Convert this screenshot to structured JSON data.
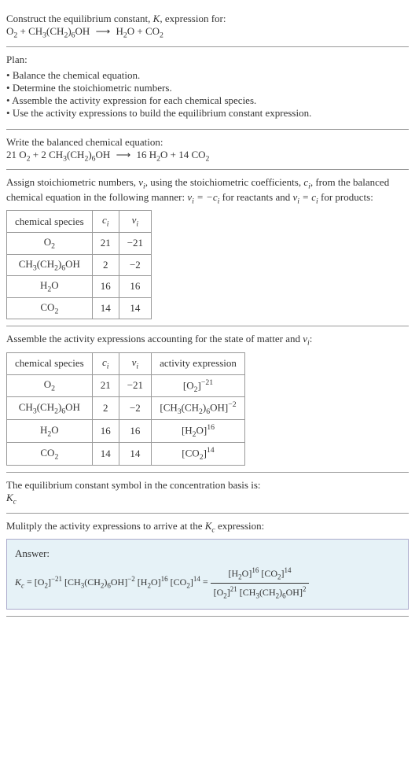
{
  "intro": {
    "title_prefix": "Construct the equilibrium constant, ",
    "K": "K",
    "title_suffix": ", expression for:",
    "species_O2": "O",
    "sub2": "2",
    "plus": " + ",
    "species_hept": "CH",
    "sub3": "3",
    "parenL": "(CH",
    "parenR": ")",
    "sub6": "6",
    "OH": "OH",
    "arrow": "⟶",
    "species_H2O": "H",
    "O": "O",
    "species_CO2": "CO"
  },
  "plan": {
    "label": "Plan:",
    "items": [
      "Balance the chemical equation.",
      "Determine the stoichiometric numbers.",
      "Assemble the activity expression for each chemical species.",
      "Use the activity expressions to build the equilibrium constant expression."
    ]
  },
  "balanced": {
    "label": "Write the balanced chemical equation:",
    "c_O2": "21 ",
    "c_hept": "2 ",
    "c_H2O": " 16 ",
    "c_CO2": "14 "
  },
  "stoich": {
    "text1": "Assign stoichiometric numbers, ",
    "nu": "ν",
    "sub_i": "i",
    "text2": ", using the stoichiometric coefficients, ",
    "c": "c",
    "text3": ", from the balanced chemical equation in the following manner: ",
    "rel_react": " = −",
    "text_react": " for reactants and ",
    "rel_prod": " = ",
    "text_prod": " for products:",
    "headers": {
      "species": "chemical species",
      "ci": "c",
      "nui": "ν"
    },
    "rows": [
      {
        "ci": "21",
        "nui": "−21"
      },
      {
        "ci": "2",
        "nui": "−2"
      },
      {
        "ci": "16",
        "nui": "16"
      },
      {
        "ci": "14",
        "nui": "14"
      }
    ]
  },
  "activity": {
    "label": "Assemble the activity expressions accounting for the state of matter and ",
    "colon": ":",
    "headers": {
      "species": "chemical species",
      "ci": "c",
      "nui": "ν",
      "act": "activity expression"
    },
    "rows": [
      {
        "ci": "21",
        "nui": "−21",
        "exp": "−21"
      },
      {
        "ci": "2",
        "nui": "−2",
        "exp": "−2"
      },
      {
        "ci": "16",
        "nui": "16",
        "exp": "16"
      },
      {
        "ci": "14",
        "nui": "14",
        "exp": "14"
      }
    ]
  },
  "symbol": {
    "label": "The equilibrium constant symbol in the concentration basis is:",
    "Kc_K": "K",
    "Kc_c": "c"
  },
  "multiply": {
    "label_pre": "Mulitply the activity expressions to arrive at the ",
    "label_post": " expression:"
  },
  "answer": {
    "label": "Answer:",
    "eq": " = ",
    "lbr": "[",
    "rbr": "]",
    "exp_O2": "−21",
    "exp_hept": "−2",
    "exp_H2O": "16",
    "exp_CO2": "14",
    "exp_O2_pos": "21",
    "exp_hept_pos": "2"
  },
  "style": {
    "border_color": "#999",
    "answer_bg": "#e6f2f7",
    "answer_border": "#aac"
  }
}
